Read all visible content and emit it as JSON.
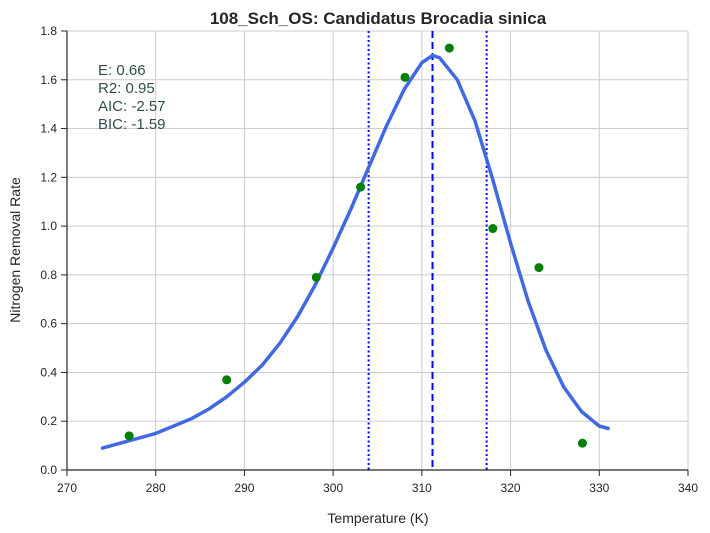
{
  "chart_data": {
    "type": "scatter",
    "title": "108_Sch_OS: Candidatus Brocadia sinica",
    "xlabel": "Temperature (K)",
    "ylabel": "Nitrogen Removal Rate",
    "xlim": [
      270,
      340
    ],
    "ylim": [
      0,
      1.8
    ],
    "xticks": [
      "270",
      "280",
      "290",
      "300",
      "310",
      "320",
      "330",
      "340"
    ],
    "yticks": [
      "0.0",
      "0.2",
      "0.4",
      "0.6",
      "0.8",
      "1.0",
      "1.2",
      "1.4",
      "1.6",
      "1.8"
    ],
    "grid": true,
    "series": [
      {
        "type": "scatter",
        "color": "#008000",
        "x": [
          277.0,
          288.0,
          298.1,
          303.1,
          308.1,
          313.1,
          318.0,
          323.2,
          328.1
        ],
        "y": [
          0.14,
          0.37,
          0.79,
          1.16,
          1.61,
          1.73,
          0.99,
          0.83,
          0.11
        ]
      },
      {
        "type": "line",
        "color": "#4169e1",
        "x": [
          274.0,
          276.0,
          278.0,
          280.0,
          282.0,
          284.0,
          286.0,
          288.0,
          290.0,
          292.0,
          294.0,
          296.0,
          298.0,
          300.0,
          302.0,
          304.0,
          306.0,
          308.0,
          310.0,
          311.2,
          312.0,
          314.0,
          316.0,
          318.0,
          320.0,
          322.0,
          324.0,
          326.0,
          328.0,
          330.0,
          331.0
        ],
        "y": [
          0.09,
          0.11,
          0.13,
          0.15,
          0.18,
          0.21,
          0.25,
          0.3,
          0.36,
          0.43,
          0.52,
          0.63,
          0.76,
          0.91,
          1.07,
          1.24,
          1.41,
          1.56,
          1.67,
          1.7,
          1.69,
          1.6,
          1.43,
          1.19,
          0.93,
          0.69,
          0.49,
          0.34,
          0.24,
          0.18,
          0.17
        ]
      }
    ],
    "vlines": [
      {
        "x": 304.0,
        "style": "dotted",
        "color": "#0000ff"
      },
      {
        "x": 311.2,
        "style": "dashed",
        "color": "#0000ff"
      },
      {
        "x": 317.3,
        "style": "dotted",
        "color": "#0000ff"
      }
    ],
    "annotations": [
      "E:  0.66",
      "R2:  0.95",
      "AIC: -2.57",
      "BIC: -1.59"
    ]
  }
}
